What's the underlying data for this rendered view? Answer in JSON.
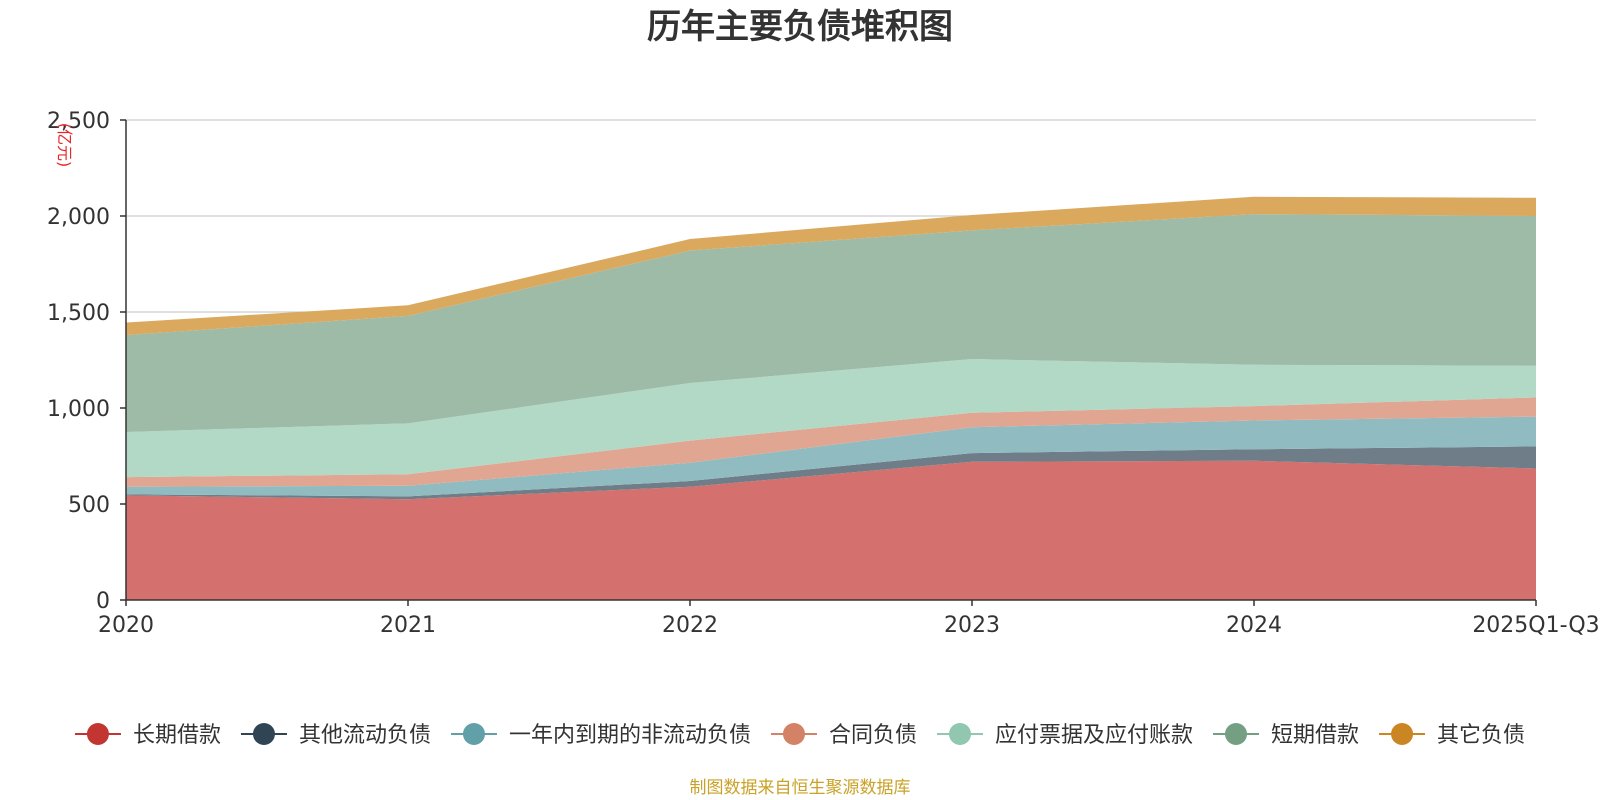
{
  "chart_data": {
    "type": "area",
    "stacked": true,
    "title": "历年主要负债堆积图",
    "unit_label": "(亿元)",
    "categories": [
      "2020",
      "2021",
      "2022",
      "2023",
      "2024",
      "2025Q1-Q3"
    ],
    "ylim": [
      0,
      2500
    ],
    "y_ticks": [
      0,
      500,
      1000,
      1500,
      2000,
      2500
    ],
    "y_tick_labels": [
      "0",
      "500",
      "1,000",
      "1,500",
      "2,000",
      "2,500"
    ],
    "grid": true,
    "legend_position": "bottom",
    "series": [
      {
        "name": "长期借款",
        "values": [
          545,
          525,
          590,
          720,
          725,
          685
        ],
        "color": "#c23531",
        "fill": "#d4706d"
      },
      {
        "name": "其他流动负债",
        "values": [
          5,
          15,
          30,
          45,
          60,
          115
        ],
        "color": "#2f4554",
        "fill": "#6e7d87"
      },
      {
        "name": "一年内到期的非流动负债",
        "values": [
          40,
          55,
          95,
          135,
          150,
          155
        ],
        "color": "#61a0a8",
        "fill": "#90bcc1"
      },
      {
        "name": "合同负债",
        "values": [
          50,
          60,
          115,
          75,
          75,
          100
        ],
        "color": "#d48265",
        "fill": "#e1a692"
      },
      {
        "name": "应付票据及应付账款",
        "values": [
          235,
          265,
          300,
          280,
          215,
          165
        ],
        "color": "#91c7ae",
        "fill": "#b2d8c6"
      },
      {
        "name": "短期借款",
        "values": [
          505,
          560,
          690,
          670,
          785,
          780
        ],
        "color": "#749f83",
        "fill": "#9ebba8"
      },
      {
        "name": "其它负债",
        "values": [
          65,
          55,
          60,
          80,
          90,
          95
        ],
        "color": "#ca8622",
        "fill": "#daa95e"
      }
    ],
    "source_note": "制图数据来自恒生聚源数据库",
    "source_color": "#c9a227"
  }
}
